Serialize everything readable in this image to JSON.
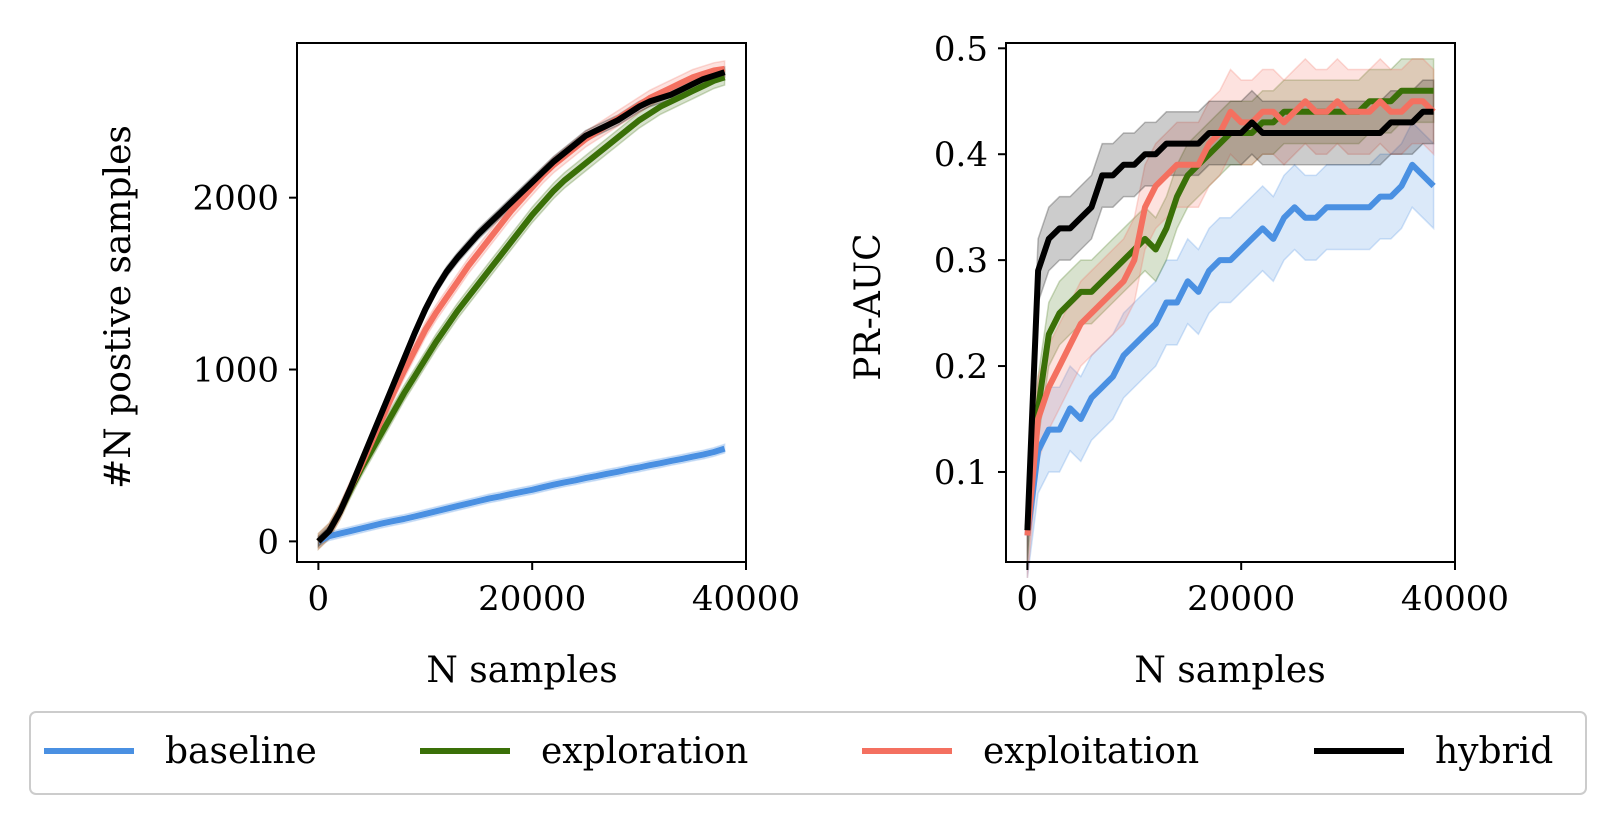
{
  "colors": {
    "baseline": "#4a90e2",
    "exploration": "#3a7008",
    "exploitation": "#f47060",
    "hybrid": "#000000"
  },
  "legend": {
    "items": [
      {
        "key": "baseline",
        "label": "baseline"
      },
      {
        "key": "exploration",
        "label": "exploration"
      },
      {
        "key": "exploitation",
        "label": "exploitation"
      },
      {
        "key": "hybrid",
        "label": "hybrid"
      }
    ],
    "placement": "bottom-center"
  },
  "chart_data": [
    {
      "type": "line",
      "title": "",
      "xlabel": "N samples",
      "ylabel": "#N postive samples",
      "xlim": [
        -2000,
        40000
      ],
      "ylim": [
        -120,
        2900
      ],
      "xticks": [
        0,
        20000,
        40000
      ],
      "yticks": [
        0,
        1000,
        2000
      ],
      "x": [
        0,
        1000,
        2000,
        3000,
        4000,
        5000,
        6000,
        7000,
        8000,
        9000,
        10000,
        11000,
        12000,
        13000,
        14000,
        15000,
        16000,
        17000,
        18000,
        19000,
        20000,
        21000,
        22000,
        23000,
        24000,
        25000,
        26000,
        27000,
        28000,
        29000,
        30000,
        31000,
        32000,
        33000,
        34000,
        35000,
        36000,
        37000,
        38000
      ],
      "series": [
        {
          "name": "baseline",
          "values": [
            0,
            30,
            45,
            60,
            75,
            90,
            105,
            118,
            130,
            145,
            160,
            175,
            190,
            205,
            220,
            235,
            250,
            262,
            275,
            288,
            300,
            315,
            330,
            343,
            355,
            368,
            380,
            393,
            405,
            418,
            430,
            443,
            455,
            468,
            480,
            493,
            505,
            520,
            540
          ],
          "band": 25
        },
        {
          "name": "exploration",
          "values": [
            0,
            60,
            170,
            300,
            420,
            530,
            640,
            750,
            860,
            960,
            1060,
            1160,
            1250,
            1340,
            1420,
            1500,
            1580,
            1660,
            1740,
            1820,
            1900,
            1970,
            2040,
            2100,
            2150,
            2200,
            2250,
            2300,
            2350,
            2400,
            2450,
            2490,
            2530,
            2560,
            2590,
            2620,
            2650,
            2680,
            2700
          ],
          "band": 45
        },
        {
          "name": "exploitation",
          "values": [
            0,
            60,
            170,
            310,
            440,
            580,
            720,
            860,
            990,
            1110,
            1230,
            1330,
            1420,
            1510,
            1600,
            1680,
            1760,
            1840,
            1920,
            1990,
            2060,
            2130,
            2190,
            2240,
            2290,
            2340,
            2380,
            2420,
            2460,
            2500,
            2540,
            2580,
            2610,
            2640,
            2670,
            2700,
            2720,
            2740,
            2750
          ],
          "band": 45
        },
        {
          "name": "hybrid",
          "values": [
            0,
            60,
            170,
            310,
            460,
            610,
            760,
            910,
            1060,
            1210,
            1350,
            1470,
            1570,
            1650,
            1720,
            1790,
            1850,
            1910,
            1970,
            2030,
            2090,
            2150,
            2210,
            2260,
            2310,
            2360,
            2390,
            2420,
            2450,
            2490,
            2530,
            2560,
            2580,
            2600,
            2630,
            2660,
            2690,
            2710,
            2730
          ],
          "band": 30
        }
      ]
    },
    {
      "type": "line",
      "title": "",
      "xlabel": "N samples",
      "ylabel": "PR-AUC",
      "xlim": [
        -2000,
        40000
      ],
      "ylim": [
        0.015,
        0.505
      ],
      "xticks": [
        0,
        20000,
        40000
      ],
      "yticks": [
        0.1,
        0.2,
        0.3,
        0.4,
        0.5
      ],
      "x": [
        0,
        1000,
        2000,
        3000,
        4000,
        5000,
        6000,
        7000,
        8000,
        9000,
        10000,
        11000,
        12000,
        13000,
        14000,
        15000,
        16000,
        17000,
        18000,
        19000,
        20000,
        21000,
        22000,
        23000,
        24000,
        25000,
        26000,
        27000,
        28000,
        29000,
        30000,
        31000,
        32000,
        33000,
        34000,
        35000,
        36000,
        37000,
        38000
      ],
      "series": [
        {
          "name": "baseline",
          "values": [
            0.04,
            0.12,
            0.14,
            0.14,
            0.16,
            0.15,
            0.17,
            0.18,
            0.19,
            0.21,
            0.22,
            0.23,
            0.24,
            0.26,
            0.26,
            0.28,
            0.27,
            0.29,
            0.3,
            0.3,
            0.31,
            0.32,
            0.33,
            0.32,
            0.34,
            0.35,
            0.34,
            0.34,
            0.35,
            0.35,
            0.35,
            0.35,
            0.35,
            0.36,
            0.36,
            0.37,
            0.39,
            0.38,
            0.37
          ],
          "band": 0.04
        },
        {
          "name": "exploration",
          "values": [
            0.045,
            0.16,
            0.23,
            0.25,
            0.26,
            0.27,
            0.27,
            0.28,
            0.29,
            0.3,
            0.31,
            0.32,
            0.31,
            0.33,
            0.36,
            0.38,
            0.39,
            0.4,
            0.41,
            0.42,
            0.42,
            0.42,
            0.43,
            0.43,
            0.44,
            0.44,
            0.44,
            0.44,
            0.44,
            0.44,
            0.44,
            0.44,
            0.45,
            0.45,
            0.45,
            0.46,
            0.46,
            0.46,
            0.46
          ],
          "band": 0.03
        },
        {
          "name": "exploitation",
          "values": [
            0.04,
            0.15,
            0.18,
            0.2,
            0.22,
            0.24,
            0.25,
            0.26,
            0.27,
            0.28,
            0.3,
            0.35,
            0.37,
            0.38,
            0.39,
            0.39,
            0.39,
            0.41,
            0.42,
            0.44,
            0.43,
            0.43,
            0.44,
            0.44,
            0.43,
            0.44,
            0.45,
            0.44,
            0.44,
            0.45,
            0.44,
            0.44,
            0.44,
            0.45,
            0.44,
            0.44,
            0.45,
            0.45,
            0.44
          ],
          "band": 0.04
        },
        {
          "name": "hybrid",
          "values": [
            0.045,
            0.29,
            0.32,
            0.33,
            0.33,
            0.34,
            0.35,
            0.38,
            0.38,
            0.39,
            0.39,
            0.4,
            0.4,
            0.41,
            0.41,
            0.41,
            0.41,
            0.42,
            0.42,
            0.42,
            0.42,
            0.43,
            0.42,
            0.42,
            0.42,
            0.42,
            0.42,
            0.42,
            0.42,
            0.42,
            0.42,
            0.42,
            0.42,
            0.42,
            0.43,
            0.43,
            0.43,
            0.44,
            0.44
          ],
          "band": 0.03
        }
      ]
    }
  ]
}
